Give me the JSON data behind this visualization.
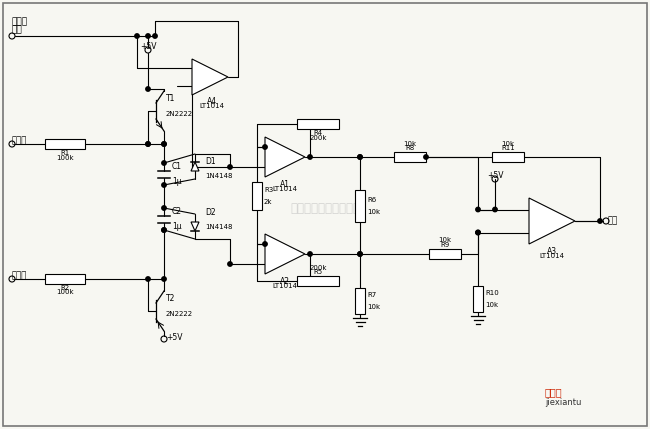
{
  "bg_color": "#f7f7f2",
  "line_color": "#000000",
  "watermark": "杭州零睿科技有限公司",
  "logo_text1": "接线图",
  "logo_text2": "jiexiantu",
  "fig_width": 6.5,
  "fig_height": 4.29
}
